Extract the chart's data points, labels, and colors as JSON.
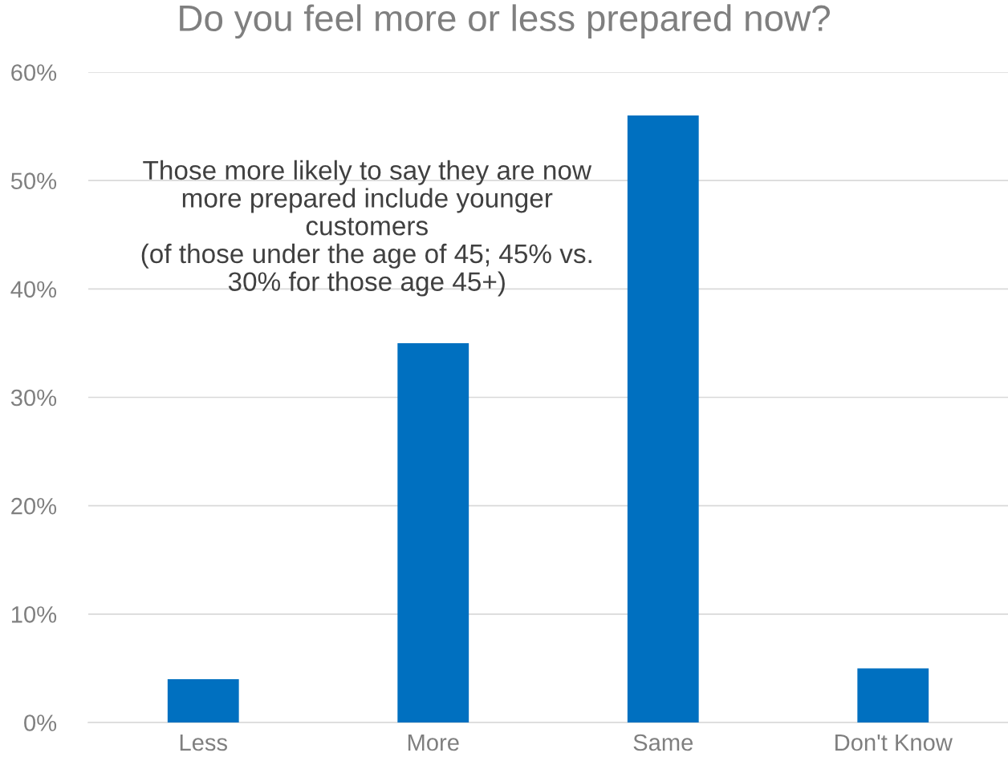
{
  "chart_data": {
    "type": "bar",
    "title": "Do you feel more or less prepared now?",
    "categories": [
      "Less",
      "More",
      "Same",
      "Don't Know"
    ],
    "values": [
      4,
      35,
      56,
      5
    ],
    "color": "#0070c0",
    "ylim": [
      0,
      60
    ],
    "yticks": [
      {
        "value": 0,
        "label": "0%"
      },
      {
        "value": 10,
        "label": "10%"
      },
      {
        "value": 20,
        "label": "20%"
      },
      {
        "value": 30,
        "label": "30%"
      },
      {
        "value": 40,
        "label": "40%"
      },
      {
        "value": 50,
        "label": "50%"
      },
      {
        "value": 60,
        "label": "60%"
      }
    ],
    "grid": "y",
    "annotations": [
      "Those more likely to say they are now\nmore prepared include younger\ncustomers\n(of those under the age of 45; 45% vs.\n30% for those age 45+)"
    ]
  }
}
